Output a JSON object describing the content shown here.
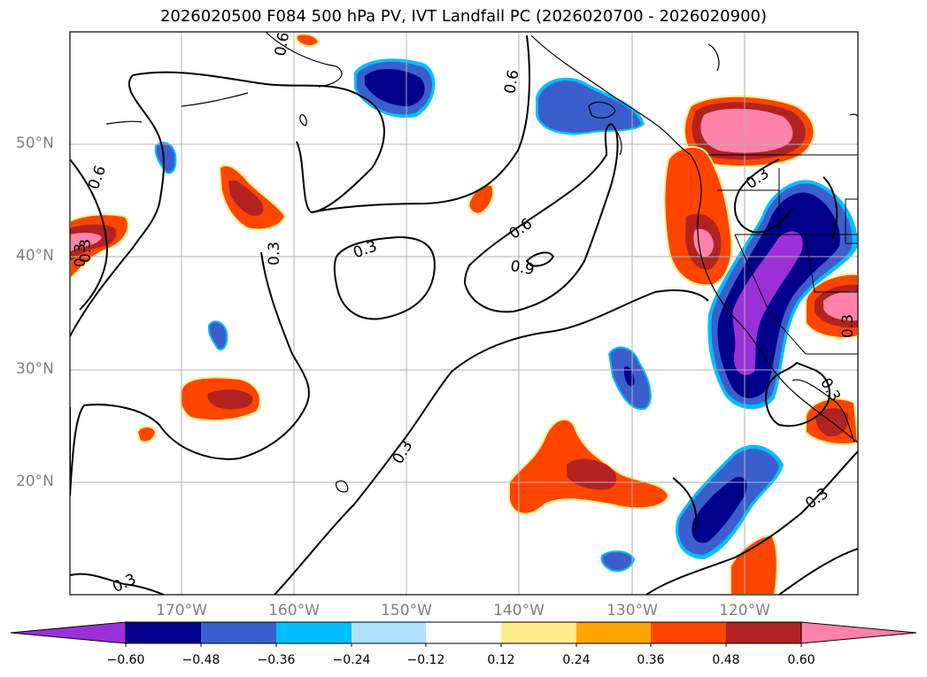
{
  "title": "2026020500 F084 500 hPa PV, IVT Landfall PC (2026020700 - 2026020900)",
  "map": {
    "lat_labels": [
      "50°N",
      "40°N",
      "30°N",
      "20°N"
    ],
    "lon_labels": [
      "170°W",
      "160°W",
      "150°W",
      "140°W",
      "130°W",
      "120°W"
    ],
    "contour_labels": [
      "0.6",
      "0.6",
      "0.6",
      "0.6",
      "0.3",
      "0.3",
      "0.9",
      "0.3",
      "0.3",
      "0.3",
      "0.3",
      "0.3",
      "0.3",
      "0.3",
      "0.3"
    ]
  },
  "colorbar": {
    "ticks": [
      "−0.60",
      "−0.48",
      "−0.36",
      "−0.24",
      "−0.12",
      "0.12",
      "0.24",
      "0.36",
      "0.48",
      "0.60"
    ],
    "colors": [
      "#9b30d8",
      "#00008b",
      "#3a5fcd",
      "#00bfff",
      "#b0e2ff",
      "#ffffff",
      "#ffec8b",
      "#ffa500",
      "#ff4500",
      "#b22222",
      "#ff82ab"
    ]
  }
}
